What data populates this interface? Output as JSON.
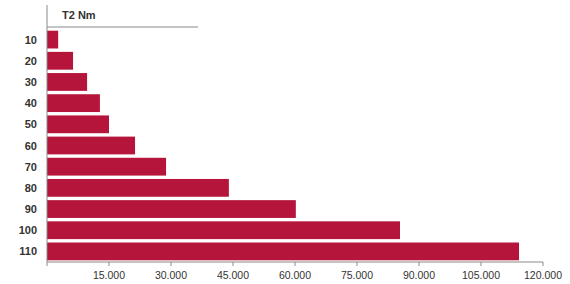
{
  "chart_data": {
    "type": "bar",
    "orientation": "horizontal",
    "title": "T2 Nm",
    "categories": [
      "10",
      "20",
      "30",
      "40",
      "50",
      "60",
      "70",
      "80",
      "90",
      "100",
      "110"
    ],
    "values": [
      2700,
      6300,
      9700,
      12800,
      15000,
      21300,
      28800,
      44000,
      60200,
      85400,
      114200
    ],
    "color": "#b5153a",
    "xlim": [
      0,
      120000
    ],
    "xticks": [
      {
        "value": 15000,
        "label": "15.000"
      },
      {
        "value": 30000,
        "label": "30.000"
      },
      {
        "value": 45000,
        "label": "45.000"
      },
      {
        "value": 60000,
        "label": "60.000"
      },
      {
        "value": 75000,
        "label": "75.000"
      },
      {
        "value": 90000,
        "label": "90.000"
      },
      {
        "value": 105000,
        "label": "105.000"
      },
      {
        "value": 120000,
        "label": "120.000"
      }
    ],
    "grid": false
  }
}
